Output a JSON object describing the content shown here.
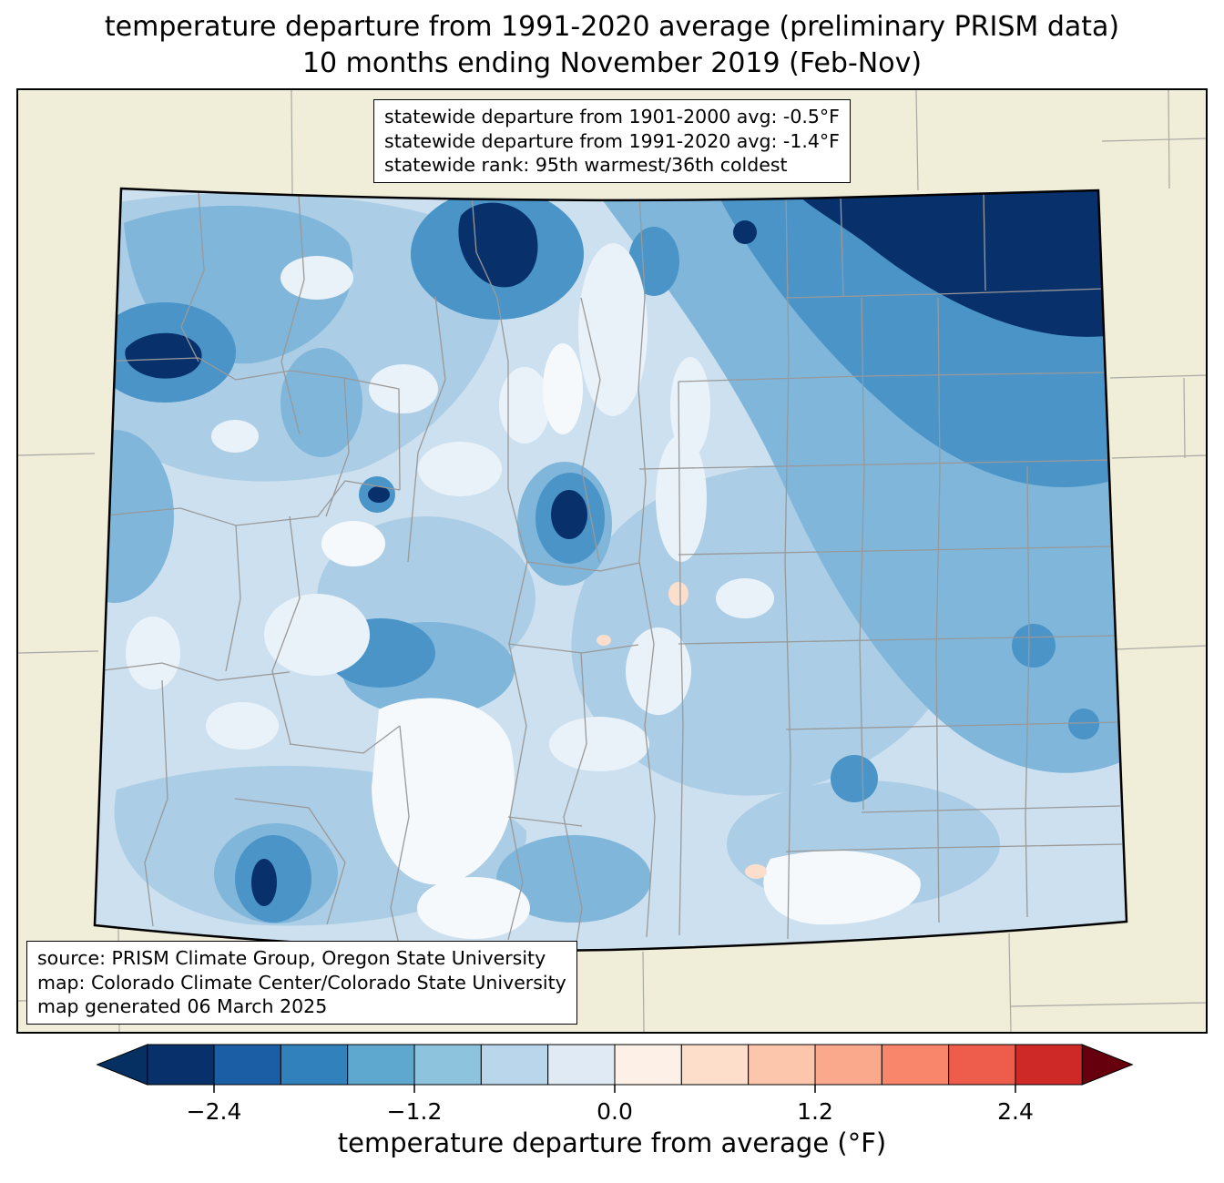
{
  "header": {
    "title_line1": "temperature departure from 1991-2020 average (preliminary PRISM data)",
    "title_line2": "10 months ending November 2019 (Feb-Nov)"
  },
  "stats_box": {
    "line1": "statewide departure from 1901-2000 avg: -0.5°F",
    "line2": "statewide departure from 1991-2020 avg: -1.4°F",
    "line3": "statewide rank: 95th warmest/36th coldest"
  },
  "source_box": {
    "line1": "source: PRISM Climate Group, Oregon State University",
    "line2": "map: Colorado Climate Center/Colorado State University",
    "line3": "map generated 06 March 2025"
  },
  "colorbar": {
    "label": "temperature departure from average (°F)",
    "tick_labels": [
      "−2.4",
      "−1.2",
      "0.0",
      "1.2",
      "2.4"
    ],
    "tick_values": [
      -2.4,
      -1.2,
      0.0,
      1.2,
      2.4
    ],
    "colors": [
      "#08306b",
      "#1b5ea6",
      "#3181bd",
      "#5ea8d0",
      "#8ec3de",
      "#b9d6ea",
      "#dfeaf4",
      "#fcf0e7",
      "#fddecb",
      "#fcc6ac",
      "#fba98c",
      "#f9866b",
      "#ee5d4c",
      "#ce2827"
    ],
    "under_color": "#053061",
    "over_color": "#67000d",
    "level_range": [
      -2.8,
      2.8
    ]
  },
  "chart_data": {
    "type": "heatmap",
    "title": "temperature departure from 1991-2020 average (preliminary PRISM data)",
    "subtitle": "10 months ending November 2019 (Feb-Nov)",
    "region": "Colorado",
    "variable": "temperature departure from average (°F)",
    "colorbar_ticks": [
      -2.4,
      -1.2,
      0.0,
      1.2,
      2.4
    ],
    "colorbar_range": [
      -2.8,
      2.8
    ],
    "statewide_departure_from_1901_2000_avg_F": -0.5,
    "statewide_departure_from_1991_2020_avg_F": -1.4,
    "statewide_rank": "95th warmest/36th coldest",
    "dominant_anomaly": "negative (colder than average, mostly -0.4 to -2.8°F statewide)"
  }
}
